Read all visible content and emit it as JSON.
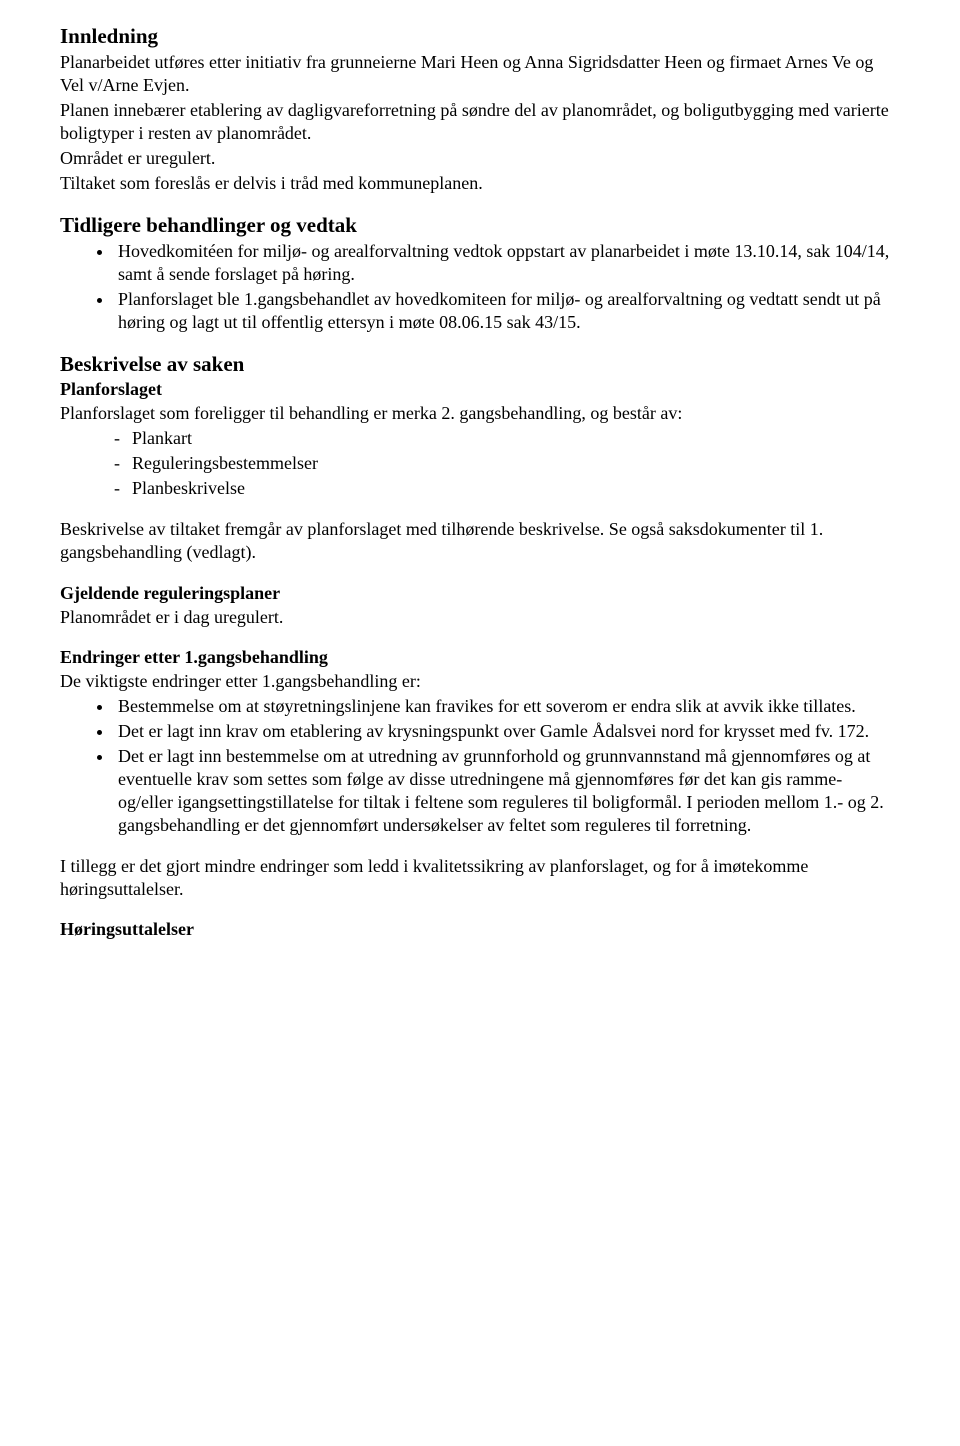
{
  "innledning": {
    "heading": "Innledning",
    "p1": "Planarbeidet utføres etter initiativ fra grunneierne Mari Heen og Anna Sigridsdatter Heen og firmaet Arnes Ve og Vel v/Arne Evjen.",
    "p2": "Planen innebærer etablering av dagligvareforretning på søndre del av planområdet, og boligutbygging med varierte boligtyper i resten av planområdet.",
    "p3": "Området er uregulert.",
    "p4": "Tiltaket som foreslås er delvis i tråd med kommuneplanen."
  },
  "tidligere": {
    "heading": "Tidligere behandlinger og vedtak",
    "items": [
      "Hovedkomitéen for miljø- og arealforvaltning vedtok oppstart av planarbeidet i møte 13.10.14, sak 104/14, samt å sende forslaget på høring.",
      "Planforslaget ble 1.gangsbehandlet av hovedkomiteen for miljø- og arealforvaltning og vedtatt sendt ut på høring og lagt ut til offentlig ettersyn i møte 08.06.15 sak 43/15."
    ]
  },
  "beskrivelse": {
    "heading": "Beskrivelse av saken",
    "planforslaget_heading": "Planforslaget",
    "planforslaget_intro": "Planforslaget som foreligger til behandling er merka 2. gangsbehandling, og består av:",
    "planforslaget_items": [
      "Plankart",
      "Reguleringsbestemmelser",
      "Planbeskrivelse"
    ],
    "tiltak_p": "Beskrivelse av tiltaket fremgår av planforslaget med tilhørende beskrivelse. Se også saksdokumenter til 1. gangsbehandling (vedlagt).",
    "gjeldende_heading": "Gjeldende reguleringsplaner",
    "gjeldende_p": "Planområdet er i dag uregulert.",
    "endringer_heading": "Endringer etter 1.gangsbehandling",
    "endringer_intro": "De viktigste endringer etter 1.gangsbehandling er:",
    "endringer_items": [
      "Bestemmelse om at støyretningslinjene kan fravikes for ett soverom er endra slik at avvik ikke tillates.",
      "Det er lagt inn krav om etablering av krysningspunkt over Gamle Ådalsvei nord for krysset med fv. 172.",
      "Det er lagt inn bestemmelse om at utredning av grunnforhold og grunnvannstand må gjennomføres og at eventuelle krav som settes som følge av disse utredningene må gjennomføres før det kan gis ramme- og/eller igangsettingstillatelse for tiltak i feltene som reguleres til boligformål. I perioden mellom 1.- og 2. gangsbehandling er det gjennomført undersøkelser av feltet som reguleres til forretning."
    ],
    "tillegg_p": "I tillegg er det gjort mindre endringer som ledd i kvalitetssikring av planforslaget, og for å imøtekomme høringsuttalelser.",
    "horings_heading": "Høringsuttalelser"
  }
}
